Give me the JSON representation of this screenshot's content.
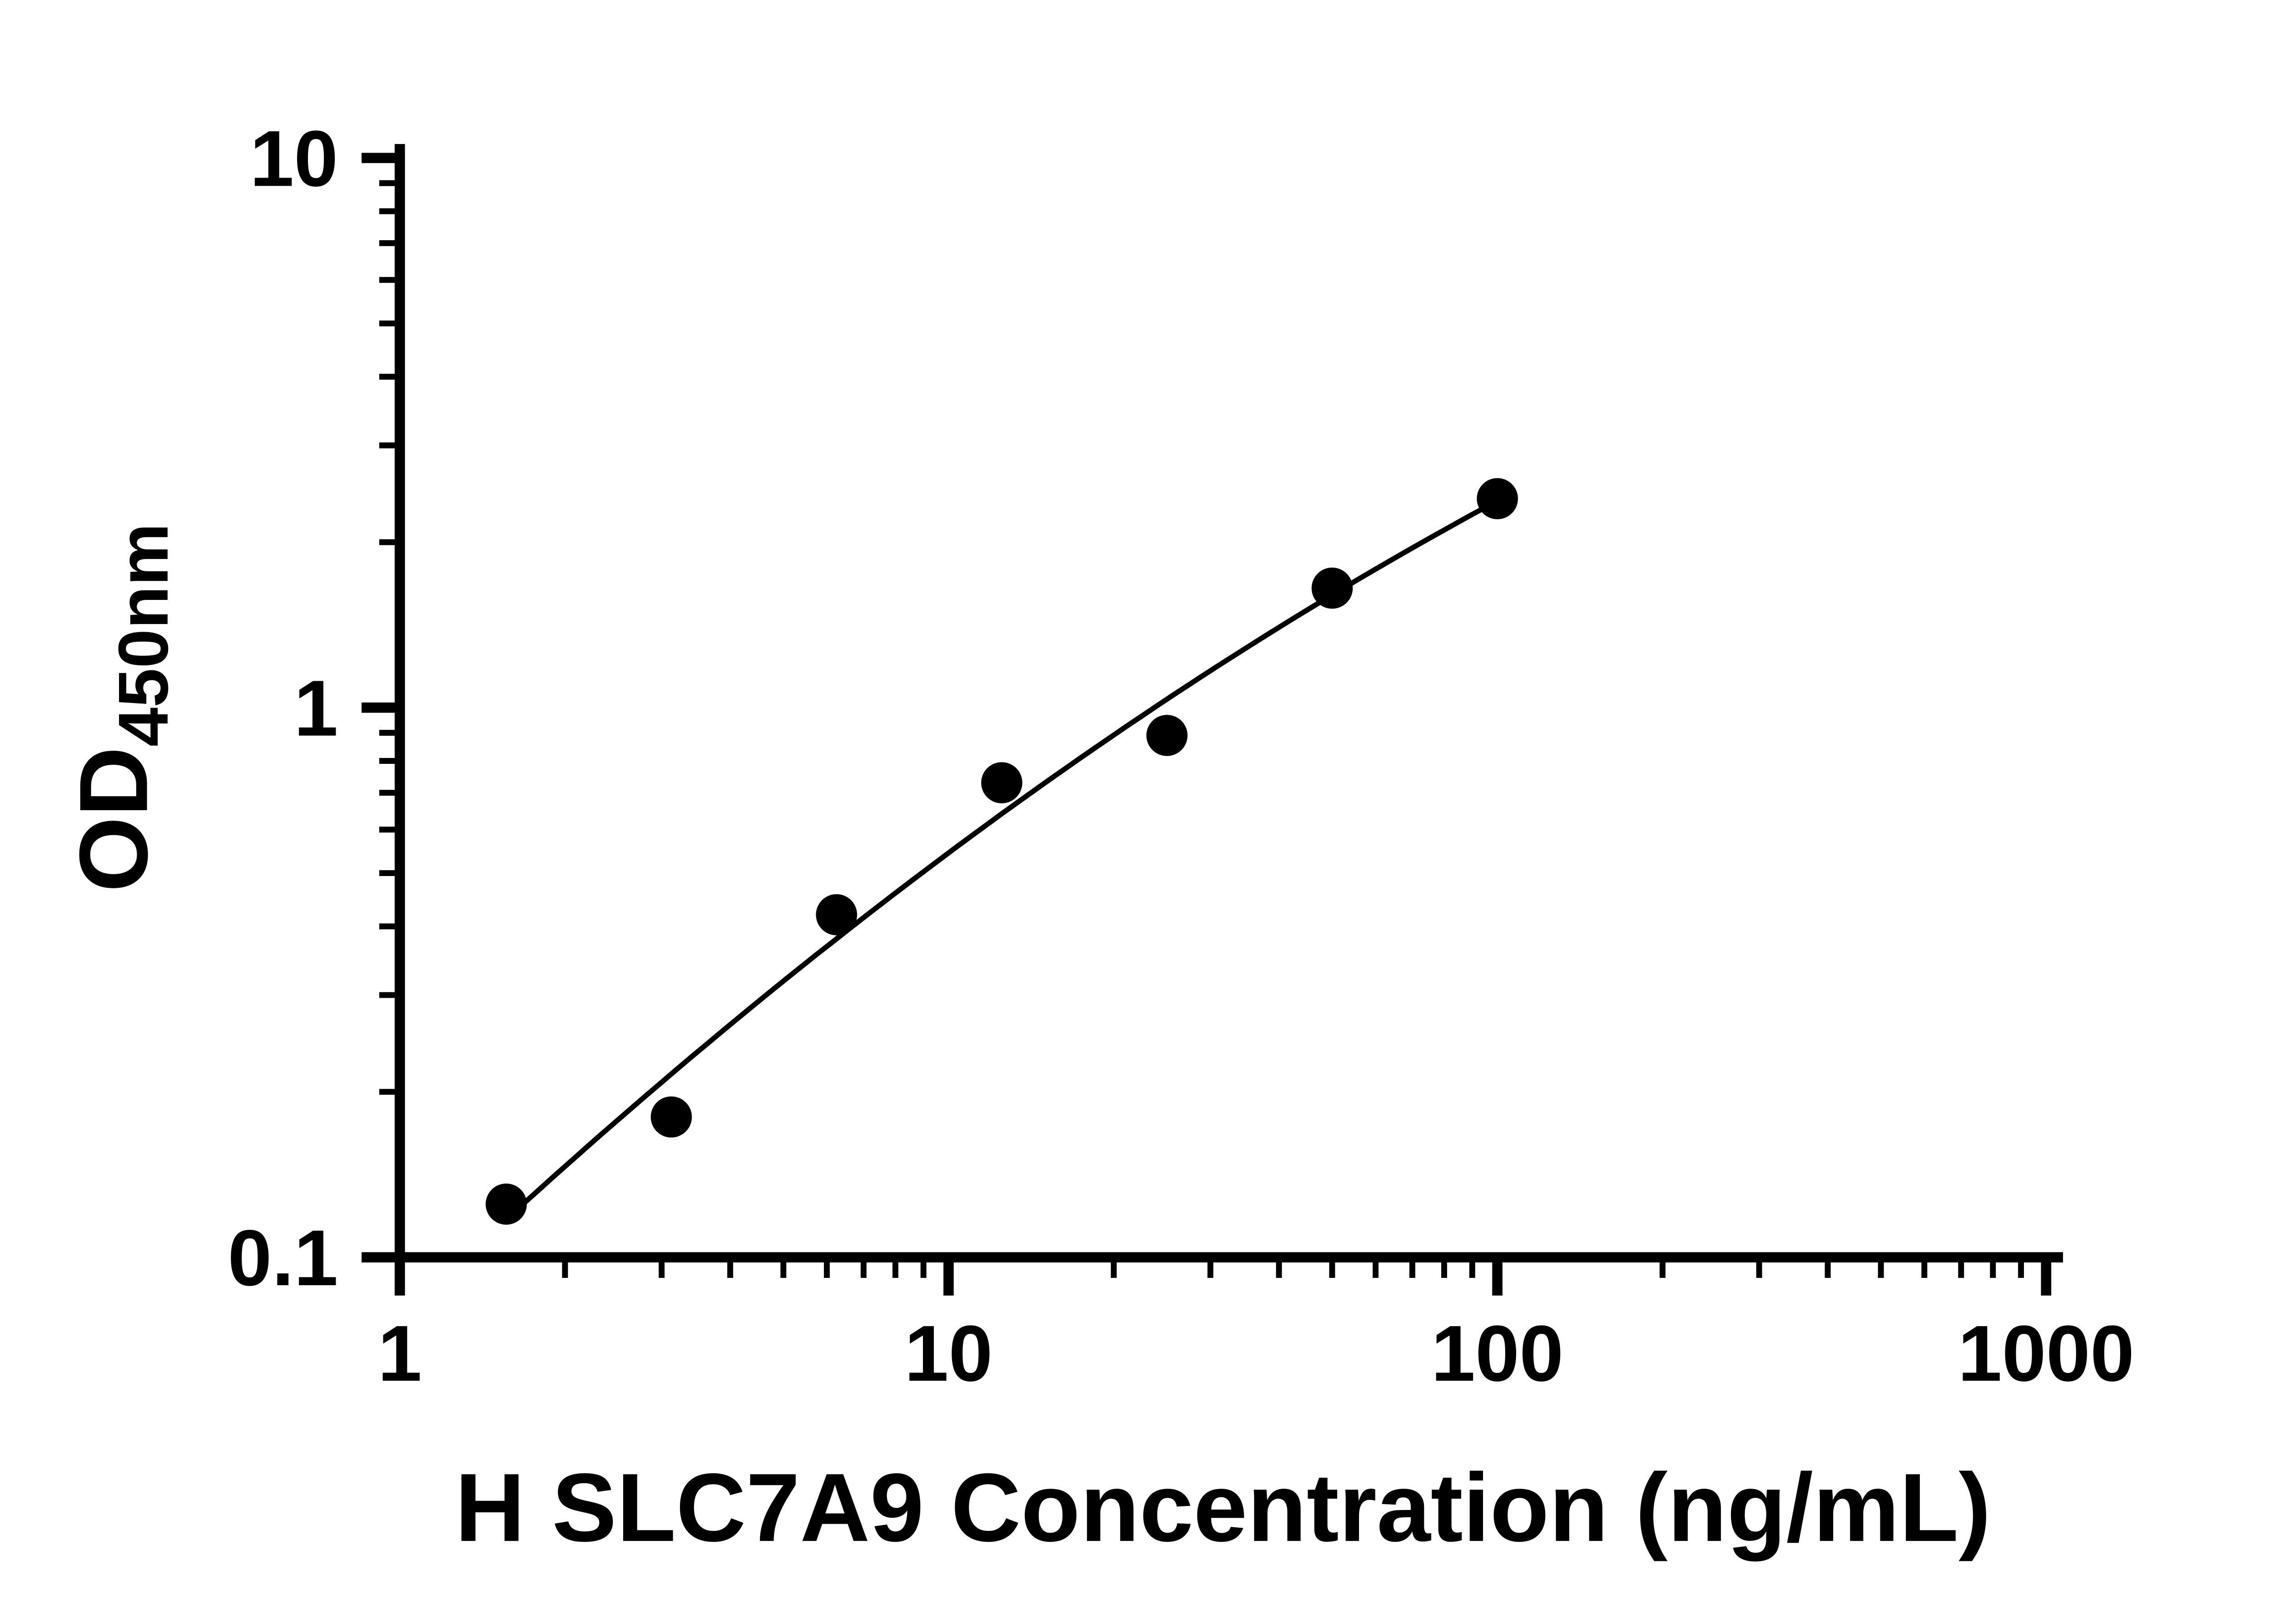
{
  "chart_data": {
    "type": "scatter",
    "title": "",
    "xlabel": "H SLC7A9 Concentration (ng/mL)",
    "ylabel_main": "OD",
    "ylabel_sub": "450nm",
    "x_scale": "log10",
    "y_scale": "log10",
    "xlim": [
      1,
      1000
    ],
    "ylim": [
      0.1,
      10
    ],
    "x": [
      1.563,
      3.125,
      6.25,
      12.5,
      25,
      50,
      100
    ],
    "y": [
      0.125,
      0.18,
      0.42,
      0.73,
      0.89,
      1.65,
      2.4
    ],
    "x_ticks": [
      {
        "value": 1,
        "label": "1"
      },
      {
        "value": 10,
        "label": "10"
      },
      {
        "value": 100,
        "label": "100"
      },
      {
        "value": 1000,
        "label": "1000"
      }
    ],
    "y_ticks": [
      {
        "value": 0.1,
        "label": "0.1"
      },
      {
        "value": 1,
        "label": "1"
      },
      {
        "value": 10,
        "label": "10"
      }
    ],
    "minor_ticks": "log minors at 2-9 per decade, both axes, pointing outward",
    "fit": "smooth regression curve drawn through points from first to last point",
    "marker": {
      "shape": "circle",
      "color": "#000000"
    },
    "line_color": "#000000",
    "axis_color": "#000000",
    "background": "#ffffff",
    "grid": false,
    "legend": false
  }
}
